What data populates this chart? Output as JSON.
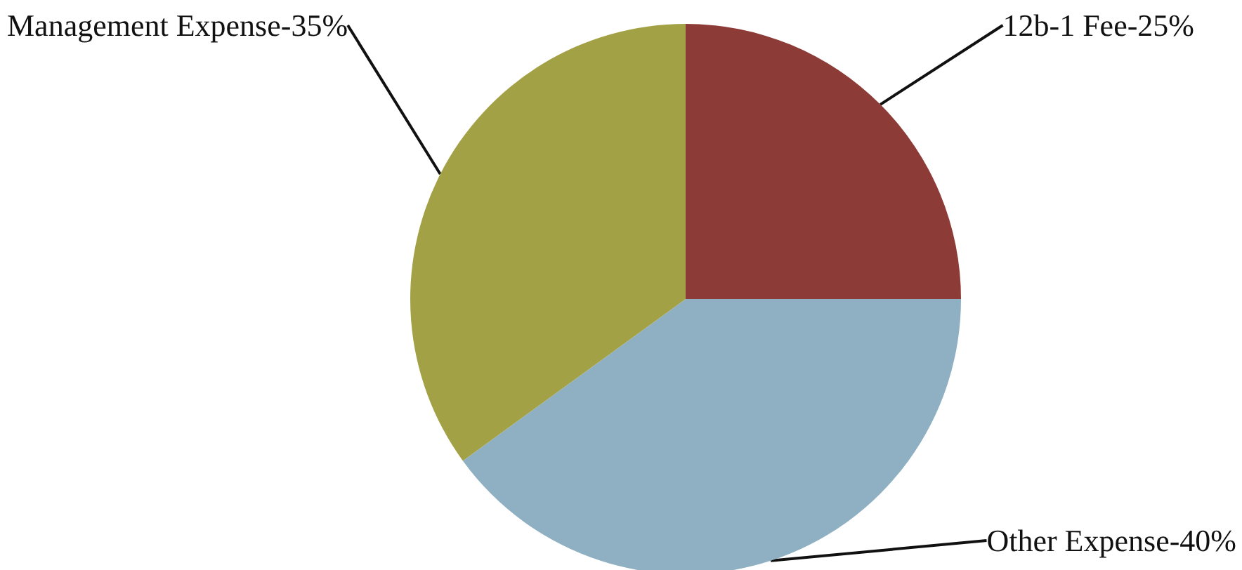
{
  "chart_data": {
    "type": "pie",
    "categories": [
      "12b-1 Fee",
      "Other Expense",
      "Management Expense"
    ],
    "values": [
      25,
      40,
      35
    ],
    "value_labels": [
      "25%",
      "40%",
      "35%"
    ],
    "colors": [
      "#8c3b36",
      "#8fb0c2",
      "#a3a145"
    ]
  }
}
